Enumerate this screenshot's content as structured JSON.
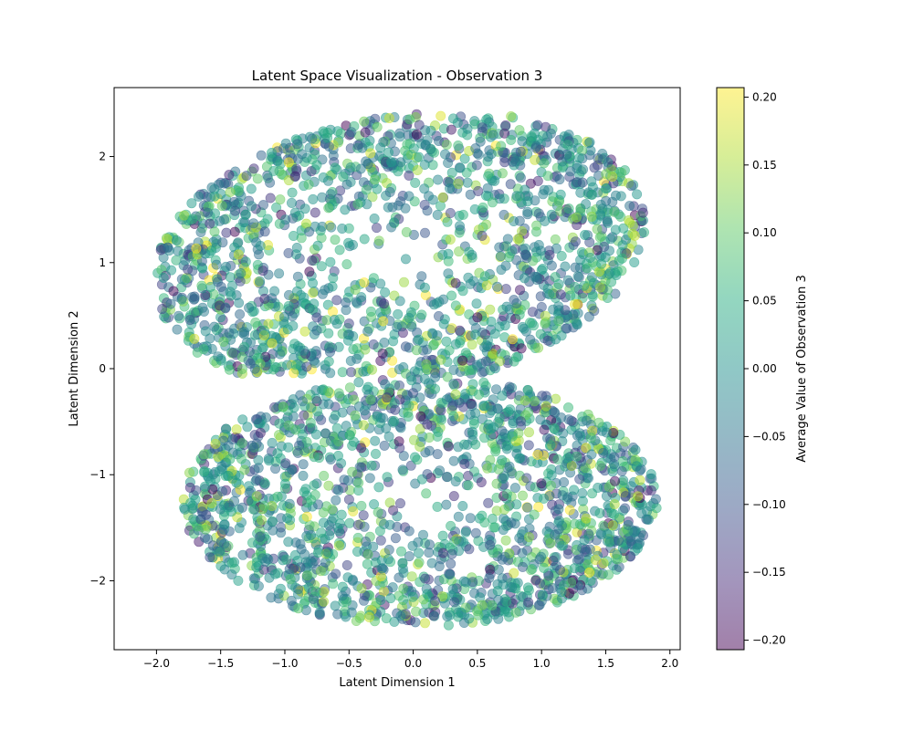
{
  "chart_data": {
    "type": "scatter",
    "title": "Latent Space Visualization - Observation 3",
    "xlabel": "Latent Dimension 1",
    "ylabel": "Latent Dimension 2",
    "xlim": [
      -2.33,
      2.08
    ],
    "ylim": [
      -2.65,
      2.65
    ],
    "x_ticks": [
      -2.0,
      -1.5,
      -1.0,
      -0.5,
      0.0,
      0.5,
      1.0,
      1.5,
      2.0
    ],
    "x_tick_labels": [
      "−2.0",
      "−1.5",
      "−1.0",
      "−0.5",
      "0.0",
      "0.5",
      "1.0",
      "1.5",
      "2.0"
    ],
    "y_ticks": [
      -2,
      -1,
      0,
      1,
      2
    ],
    "y_tick_labels": [
      "−2",
      "−1",
      "0",
      "1",
      "2"
    ],
    "colormap": "viridis",
    "point_alpha": 0.5,
    "grid": false,
    "colorbar": {
      "label": "Average Value of Observation 3",
      "range": [
        -0.207,
        0.207
      ],
      "ticks": [
        -0.2,
        -0.15,
        -0.1,
        -0.05,
        0.0,
        0.05,
        0.1,
        0.15,
        0.2
      ],
      "tick_labels": [
        "−0.20",
        "−0.15",
        "−0.10",
        "−0.05",
        "0.00",
        "0.05",
        "0.10",
        "0.15",
        "0.20"
      ]
    },
    "clusters": [
      {
        "shape": "upper lobe",
        "x_range": [
          -2.2,
          1.85
        ],
        "y_range": [
          -0.05,
          2.4
        ],
        "center": [
          -0.1,
          1.1
        ],
        "radii": [
          1.95,
          1.28
        ],
        "rotation_deg": 14,
        "approx_points": 5200
      },
      {
        "shape": "lower lobe",
        "x_range": [
          -1.8,
          1.9
        ],
        "y_range": [
          -2.42,
          0.0
        ],
        "center": [
          0.05,
          -1.25
        ],
        "radii": [
          1.85,
          1.18
        ],
        "rotation_deg": 0,
        "approx_points": 5200
      }
    ],
    "value_range": [
      -0.207,
      0.207
    ]
  }
}
